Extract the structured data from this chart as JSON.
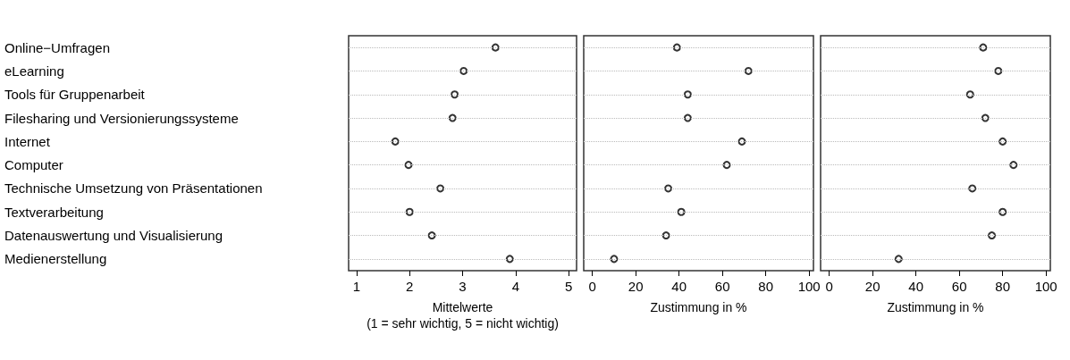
{
  "chart_data": [
    {
      "type": "scatter",
      "orientation": "horizontal",
      "categories": [
        "Online−Umfragen",
        "eLearning",
        "Tools für Gruppenarbeit",
        "Filesharing und Versionierungssysteme",
        "Internet",
        "Computer",
        "Technische Umsetzung von Präsentationen",
        "Textverarbeitung",
        "Datenauswertung und Visualisierung",
        "Medienerstellung"
      ],
      "values": [
        3.62,
        3.02,
        2.85,
        2.81,
        1.73,
        1.98,
        2.58,
        2.0,
        2.42,
        3.89
      ],
      "color": "#000000",
      "marker": "circle",
      "grid": "y",
      "xlim": [
        0.85,
        5.15
      ],
      "xticks": [
        1,
        2,
        3,
        4,
        5
      ],
      "xlabel": "Mittelwerte\n(1 = sehr wichtig, 5 = nicht wichtig)"
    },
    {
      "type": "scatter",
      "orientation": "horizontal",
      "categories": [
        null,
        null,
        null,
        null,
        null,
        null,
        null,
        null,
        null,
        null
      ],
      "values": [
        39,
        72,
        44,
        44,
        69,
        62,
        35,
        41,
        34,
        10
      ],
      "color": "#000000",
      "marker": "circle",
      "grid": "y",
      "xlim": [
        -4,
        102
      ],
      "xticks": [
        0,
        20,
        40,
        60,
        80,
        100
      ],
      "xlabel": "Zustimmung in %"
    },
    {
      "type": "scatter",
      "orientation": "horizontal",
      "categories": [
        null,
        null,
        null,
        null,
        null,
        null,
        null,
        null,
        null,
        null
      ],
      "values": [
        71,
        78,
        65,
        72,
        80,
        85,
        66,
        80,
        75,
        32
      ],
      "color": "#000000",
      "marker": "circle",
      "grid": "y",
      "xlim": [
        -4,
        102
      ],
      "xticks": [
        0,
        20,
        40,
        60,
        80,
        100
      ],
      "xlabel": "Zustimmung in %"
    }
  ]
}
